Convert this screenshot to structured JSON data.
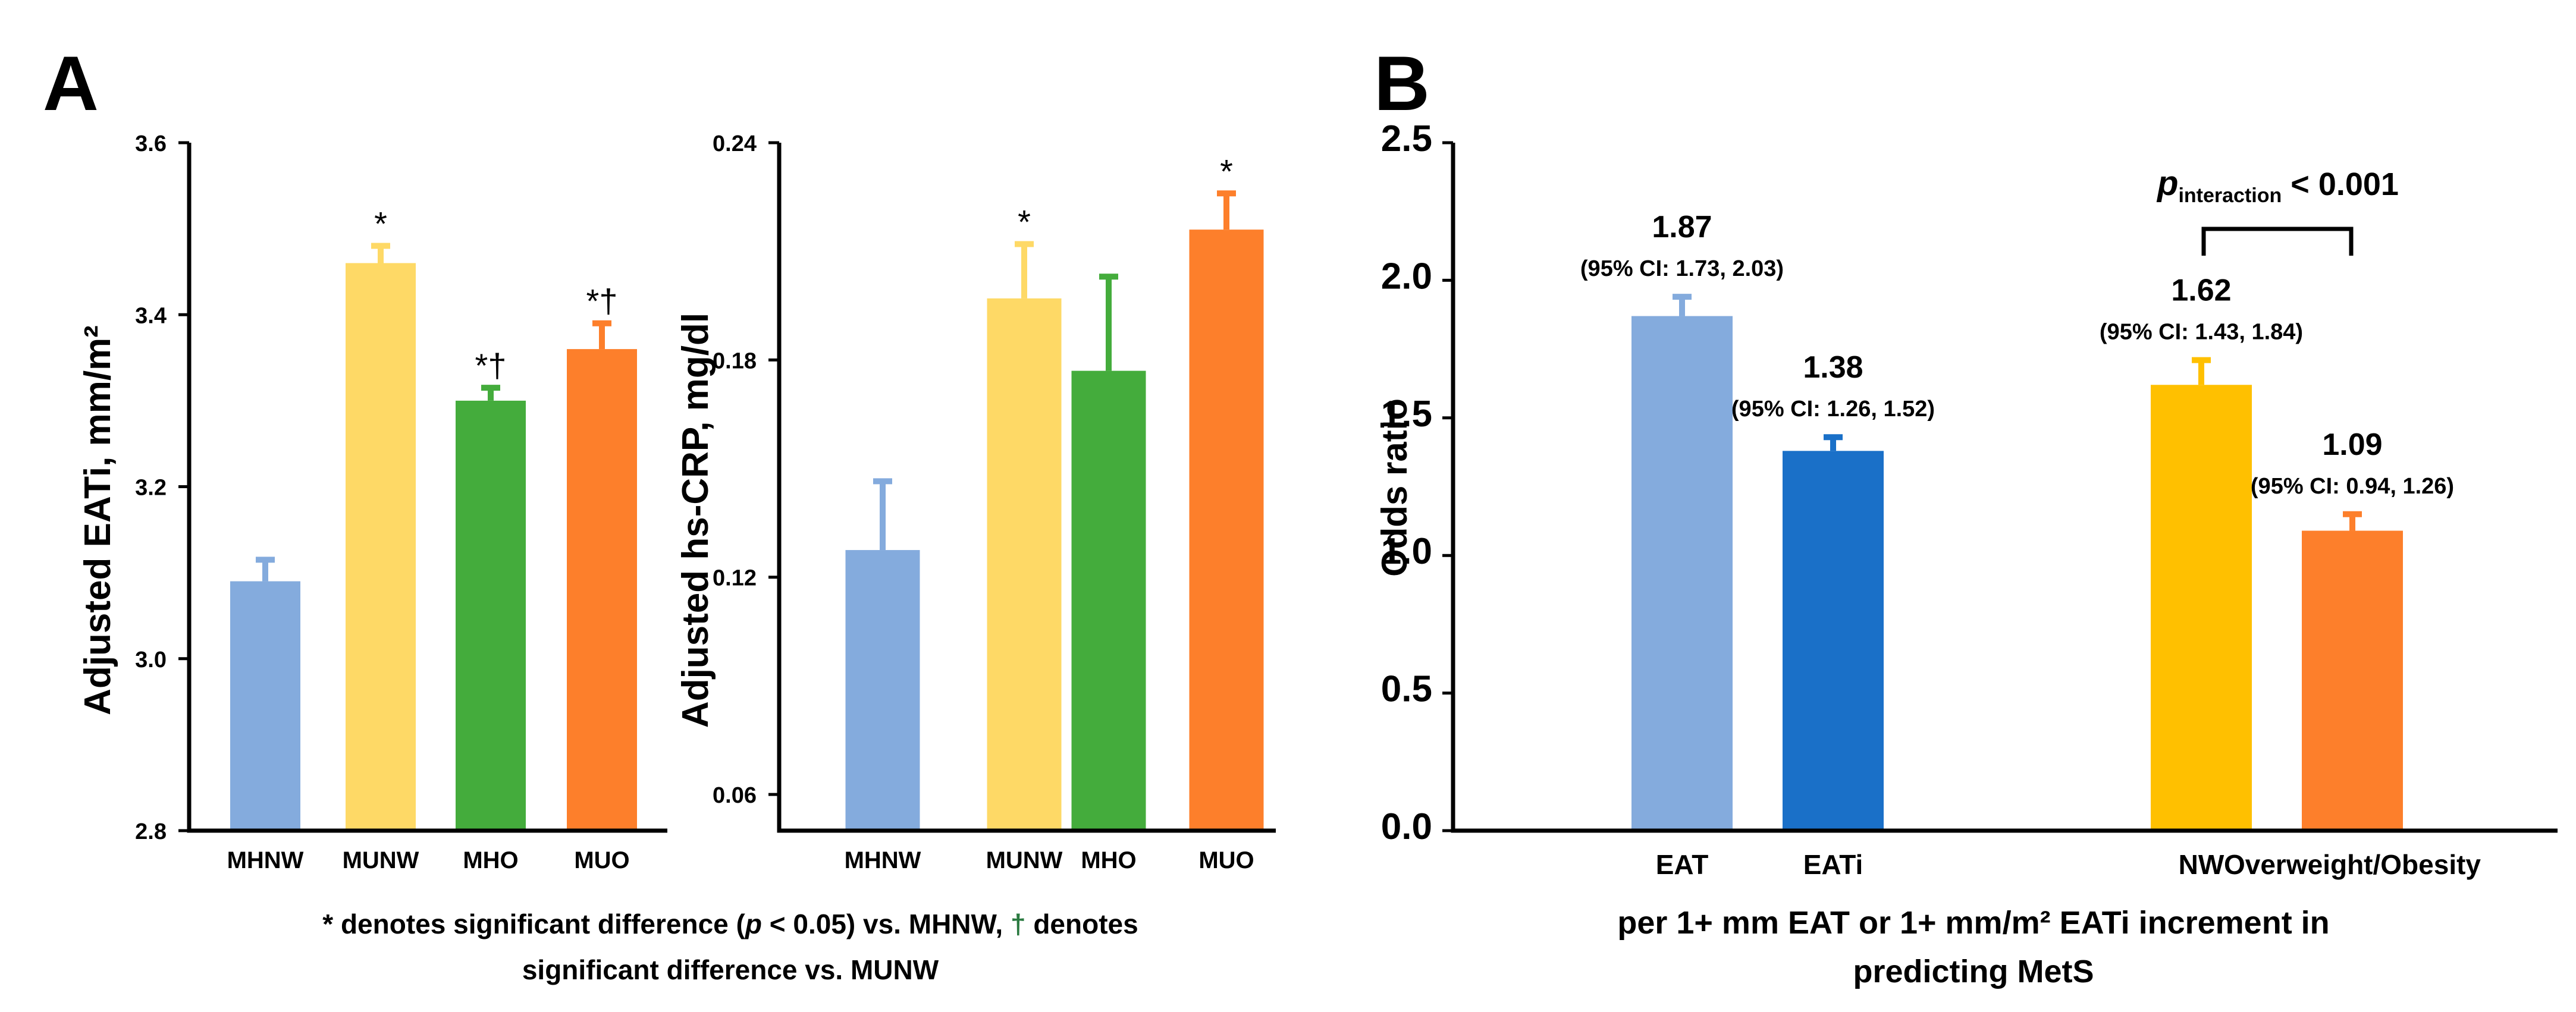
{
  "panels": {
    "a": "A",
    "b": "B"
  },
  "footnote": {
    "line1_part1": "* denotes significant difference (",
    "line1_p": "p",
    "line1_part2": " < 0.05) vs. MHNW, ",
    "line1_dagger": "†",
    "line1_part3": " denotes",
    "line2": "significant difference vs. MUNW"
  },
  "chart_data": [
    {
      "id": "eati",
      "type": "bar",
      "ylabel": "Adjusted EATi,  mm/m²",
      "ylim": [
        2.8,
        3.6
      ],
      "yticks": [
        "2.8",
        "3.0",
        "3.2",
        "3.4",
        "3.6"
      ],
      "categories": [
        "MHNW",
        "MUNW",
        "MHO",
        "MUO"
      ],
      "values": [
        3.09,
        3.46,
        3.3,
        3.36
      ],
      "errors": [
        0.025,
        0.02,
        0.015,
        0.03
      ],
      "colors": [
        "#84abdd",
        "#fed966",
        "#44ac3c",
        "#fd7f2b"
      ],
      "annotations": [
        "",
        "*",
        "*†",
        "*†"
      ]
    },
    {
      "id": "crp",
      "type": "bar",
      "ylabel": "Adjusted hs-CRP, mg/dl",
      "ylim": [
        0.05,
        0.24
      ],
      "yticks": [
        "0.06",
        "0.12",
        "0.18",
        "0.24"
      ],
      "categories": [
        "MHNW",
        "MUNW",
        "MHO",
        "MUO"
      ],
      "values": [
        0.1275,
        0.197,
        0.177,
        0.216
      ],
      "errors": [
        0.019,
        0.015,
        0.026,
        0.01
      ],
      "colors": [
        "#84abdd",
        "#fed966",
        "#44ac3c",
        "#fd7f2b"
      ],
      "annotations": [
        "",
        "*",
        "",
        "*"
      ]
    },
    {
      "id": "odds",
      "type": "bar",
      "ylabel": "Odds ratio",
      "ylim": [
        0,
        2.5
      ],
      "yticks": [
        "0.0",
        "0.5",
        "1.0",
        "1.5",
        "2.0",
        "2.5"
      ],
      "categories": [
        "EAT",
        "EATi",
        "NW",
        "Overweight/Obesity"
      ],
      "values": [
        1.87,
        1.38,
        1.62,
        1.09
      ],
      "errors": [
        0.07,
        0.05,
        0.09,
        0.06
      ],
      "value_labels": [
        "1.87",
        "1.38",
        "1.62",
        "1.09"
      ],
      "ci_labels": [
        "(95% CI: 1.73, 2.03)",
        "(95% CI: 1.26, 1.52)",
        "(95% CI: 1.43, 1.84)",
        "(95% CI: 0.94, 1.26)"
      ],
      "colors": [
        "#84abdd",
        "#1a70c8",
        "#ffc000",
        "#fd7f2b"
      ],
      "xlabel_line1": "per 1+ mm EAT or 1+ mm/m² EATi increment in",
      "xlabel_line2": "predicting MetS",
      "interaction_label_p": "p",
      "interaction_label_sub": "interaction",
      "interaction_label_rest": " < 0.001"
    }
  ]
}
